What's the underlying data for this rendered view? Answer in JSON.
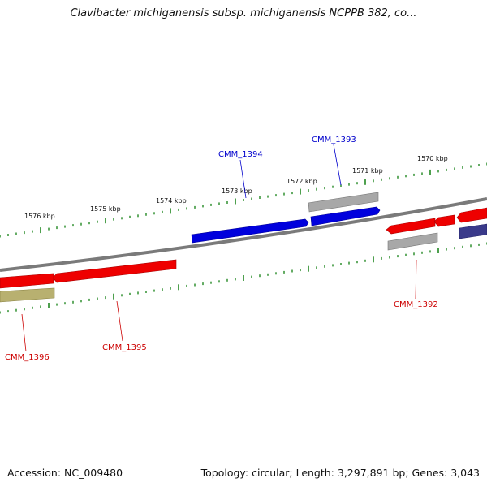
{
  "title": "Clavibacter michiganensis subsp. michiganensis NCPPB 382, co...",
  "footer": {
    "accession": "Accession: NC_009480",
    "summary": "Topology: circular; Length: 3,297,891 bp; Genes: 3,043"
  },
  "colors": {
    "red": "#ee0000",
    "blue": "#0000dd",
    "gray": "#a0a0a0",
    "olive": "#b8b070",
    "navy": "#3a3a8a",
    "tick": "#228822"
  },
  "kbp_labels": [
    "1576 kbp",
    "1575 kbp",
    "1574 kbp",
    "1573 kbp",
    "1572 kbp",
    "1571 kbp",
    "1570 kbp"
  ],
  "genes": [
    {
      "label": "CMM_1394",
      "color": "blue"
    },
    {
      "label": "CMM_1393",
      "color": "blue"
    },
    {
      "label": "CMM_1392",
      "color": "red"
    },
    {
      "label": "CMM_1395",
      "color": "red"
    },
    {
      "label": "CMM_1396",
      "color": "red"
    }
  ]
}
